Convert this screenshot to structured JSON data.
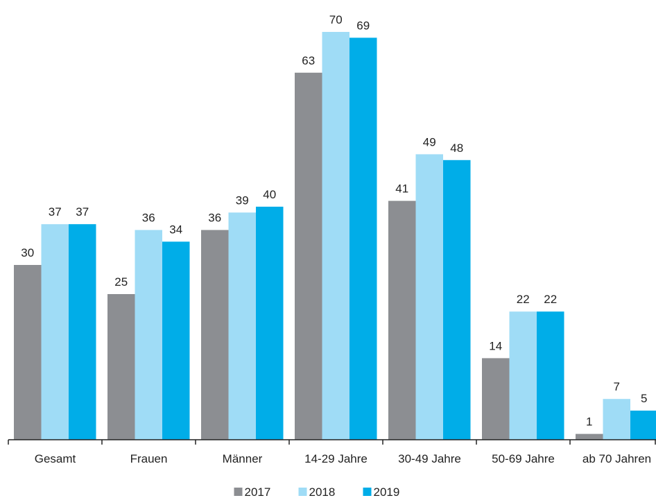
{
  "chart_data": {
    "type": "bar",
    "categories": [
      "Gesamt",
      "Frauen",
      "Männer",
      "14-29 Jahre",
      "30-49 Jahre",
      "50-69 Jahre",
      "ab 70 Jahren"
    ],
    "series": [
      {
        "name": "2017",
        "color": "#8c8e92",
        "values": [
          30,
          25,
          36,
          63,
          41,
          14,
          1
        ]
      },
      {
        "name": "2018",
        "color": "#9fdcf6",
        "values": [
          37,
          36,
          39,
          70,
          49,
          22,
          7
        ]
      },
      {
        "name": "2019",
        "color": "#00ade8",
        "values": [
          37,
          34,
          40,
          69,
          48,
          22,
          5
        ]
      }
    ],
    "ylim": [
      0,
      70
    ],
    "grid": false,
    "legend_position": "bottom-center",
    "data_labels": true
  }
}
